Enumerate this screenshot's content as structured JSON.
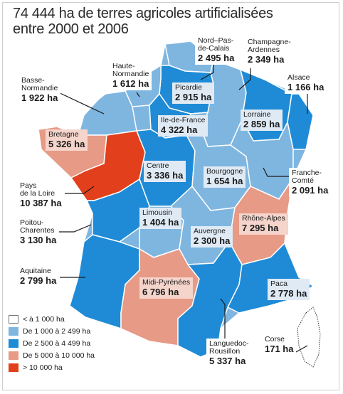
{
  "title_line1": "74 444 ha de terres agricoles artificialisées",
  "title_line2": "entre 2000 et 2006",
  "colors": {
    "c1": "#ffffff",
    "c2": "#7fb6e0",
    "c3": "#1f8bd6",
    "c4": "#e79a86",
    "c5": "#e2401c"
  },
  "legend": [
    {
      "label": "< à 1 000 ha",
      "color": "#ffffff"
    },
    {
      "label": "De 1 000 à 2 499 ha",
      "color": "#7fb6e0"
    },
    {
      "label": "De 2 500 à 4 499 ha",
      "color": "#1f8bd6"
    },
    {
      "label": "De 5 000 à 10 000 ha",
      "color": "#e79a86"
    },
    {
      "label": "> 10 000 ha",
      "color": "#e2401c"
    }
  ],
  "regions": {
    "nord": {
      "name": "Nord–Pas-\nde-Calais",
      "value": "2 495 ha"
    },
    "champagne": {
      "name": "Champagne-\nArdennes",
      "value": "2 349 ha"
    },
    "haute_normandie": {
      "name": "Haute-\nNormandie",
      "value": "1 612 ha"
    },
    "basse_normandie": {
      "name": "Basse-\nNormandie",
      "value": "1 922 ha"
    },
    "picardie": {
      "name": "Picardie",
      "value": "2 915 ha"
    },
    "alsace": {
      "name": "Alsace",
      "value": "1 166 ha"
    },
    "idf": {
      "name": "Ile-de-France",
      "value": "4 322 ha"
    },
    "lorraine": {
      "name": "Lorraine",
      "value": "2 859 ha"
    },
    "bretagne": {
      "name": "Bretagne",
      "value": "5 326 ha"
    },
    "centre": {
      "name": "Centre",
      "value": "3 336 ha"
    },
    "bourgogne": {
      "name": "Bourgogne",
      "value": "1 654 ha"
    },
    "franche_comte": {
      "name": "Franche-\nComté",
      "value": "2 091 ha"
    },
    "pays_loire": {
      "name": "Pays\nde la Loire",
      "value": "10 387 ha"
    },
    "poitou": {
      "name": "Poitou-\nCharentes",
      "value": "3 130 ha"
    },
    "limousin": {
      "name": "Limousin",
      "value": "1 404 ha"
    },
    "rhone_alpes": {
      "name": "Rhône-Alpes",
      "value": "7 295 ha"
    },
    "auvergne": {
      "name": "Auvergne",
      "value": "2 300 ha"
    },
    "aquitaine": {
      "name": "Aquitaine",
      "value": "2 799 ha"
    },
    "midi_pyrenees": {
      "name": "Midi-Pyrénées",
      "value": "6 796 ha"
    },
    "paca": {
      "name": "Paca",
      "value": "2 778 ha"
    },
    "languedoc": {
      "name": "Languedoc-\nRousillon",
      "value": "5 337 ha"
    },
    "corse": {
      "name": "Corse",
      "value": "171 ha"
    }
  }
}
